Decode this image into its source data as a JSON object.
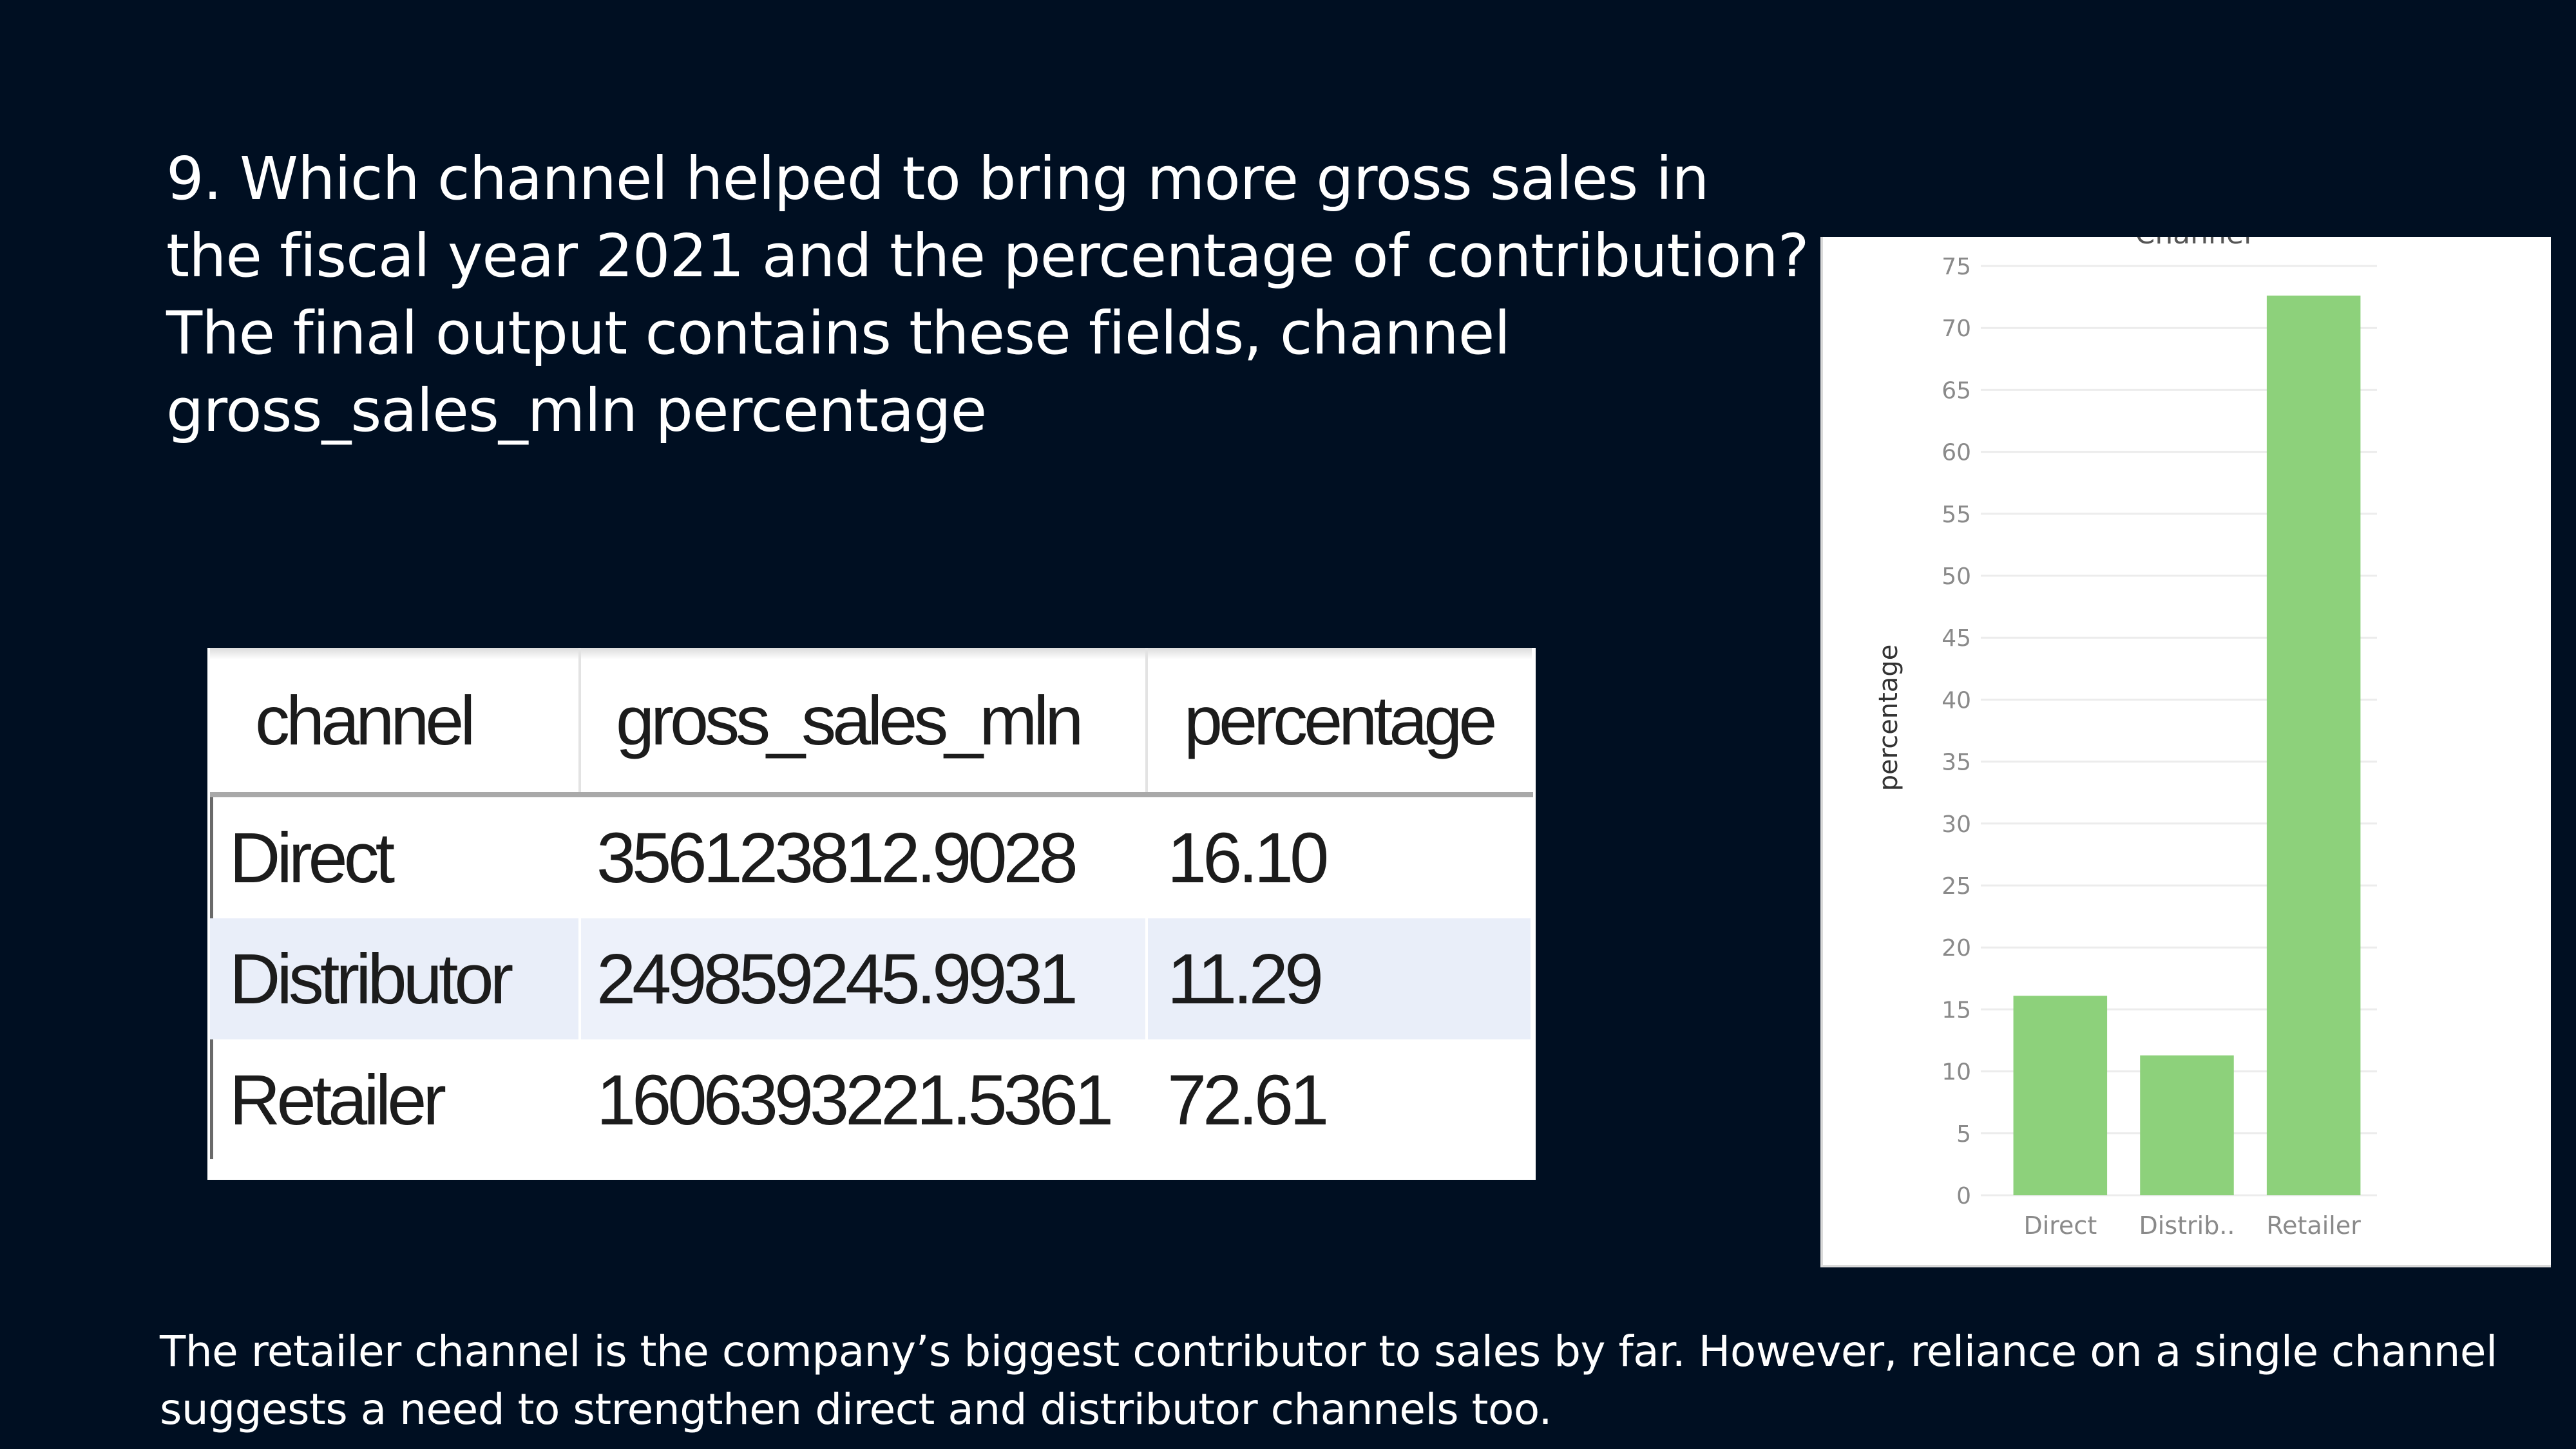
{
  "slide": {
    "question": "9. Which channel helped to bring more gross sales in the fiscal year 2021 and the percentage of contribution? The final output contains these fields, channel gross_sales_mln percentage",
    "conclusion": "The retailer channel is the company’s biggest contributor to sales by far. However, reliance on a single channel suggests a need to strengthen direct and distributor channels too."
  },
  "table": {
    "headers": [
      "channel",
      "gross_sales_mln",
      "percentage"
    ],
    "rows": [
      [
        "Direct",
        "356123812.9028",
        "16.10"
      ],
      [
        "Distributor",
        "249859245.9931",
        "11.29"
      ],
      [
        "Retailer",
        "1606393221.5361",
        "72.61"
      ]
    ]
  },
  "chart_data": {
    "type": "bar",
    "title": "Channel",
    "categories": [
      "Direct",
      "Distrib..",
      "Retailer"
    ],
    "values": [
      16.1,
      11.29,
      72.61
    ],
    "xlabel": "",
    "ylabel": "percentage",
    "ylim": [
      0,
      75
    ],
    "yticks": [
      0,
      5,
      10,
      15,
      20,
      25,
      30,
      35,
      40,
      45,
      50,
      55,
      60,
      65,
      70,
      75
    ],
    "grid": true,
    "bar_color": "#8dd17b"
  }
}
